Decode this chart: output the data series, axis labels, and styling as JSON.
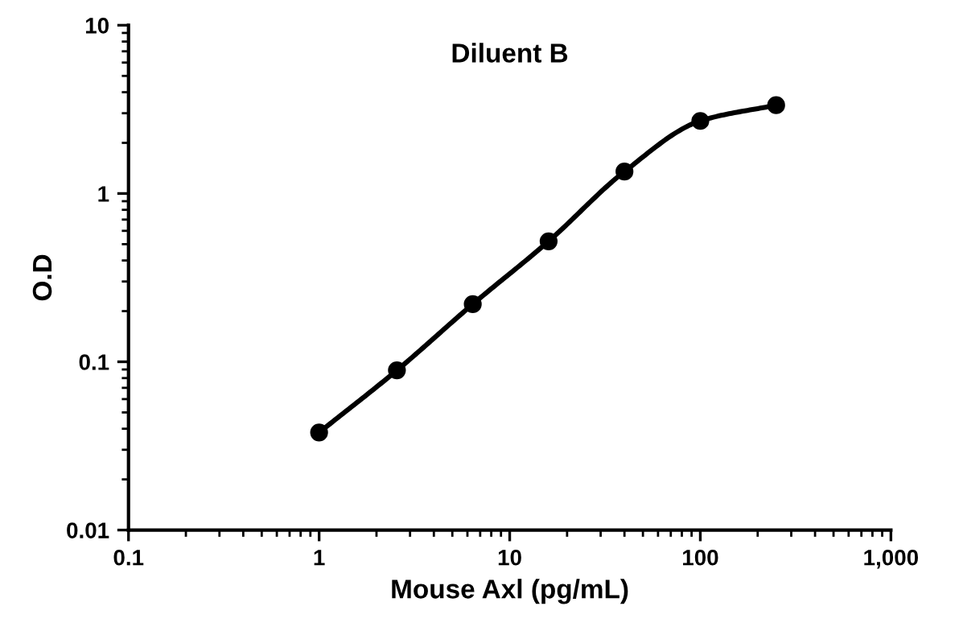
{
  "chart_data": {
    "type": "line",
    "title": "Diluent B",
    "xlabel": "Mouse Axl (pg/mL)",
    "ylabel": "O.D",
    "log": "xy",
    "x": [
      1,
      2.56,
      6.4,
      16,
      40,
      100,
      250
    ],
    "series": [
      {
        "color": "#000000",
        "values": [
          0.038,
          0.089,
          0.22,
          0.52,
          1.35,
          2.7,
          3.35
        ]
      }
    ],
    "xlim": [
      0.1,
      1000
    ],
    "xticks": [
      0.1,
      1,
      10,
      100,
      {
        "value": 1000,
        "label": "1,000"
      }
    ],
    "ylim": [
      0.01,
      10
    ],
    "yticks": [
      0.01,
      0.1,
      1,
      10
    ],
    "marker": "circle",
    "line_style": "solid",
    "grid": false
  }
}
